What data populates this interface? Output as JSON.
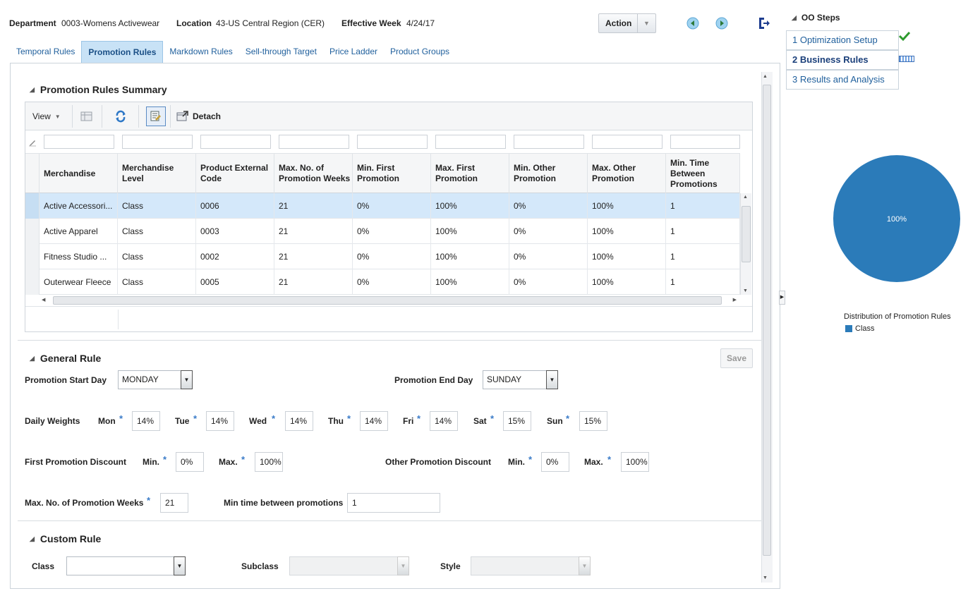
{
  "header": {
    "department_label": "Department",
    "department_value": "0003-Womens Activewear",
    "location_label": "Location",
    "location_value": "43-US Central Region (CER)",
    "effective_week_label": "Effective Week",
    "effective_week_value": "4/24/17",
    "action_label": "Action"
  },
  "tabs": [
    {
      "label": "Temporal Rules"
    },
    {
      "label": "Promotion Rules"
    },
    {
      "label": "Markdown Rules"
    },
    {
      "label": "Sell-through Target"
    },
    {
      "label": "Price Ladder"
    },
    {
      "label": "Product Groups"
    }
  ],
  "summary": {
    "title": "Promotion Rules Summary",
    "toolbar": {
      "view_label": "View",
      "detach_label": "Detach"
    },
    "columns": [
      "Merchandise",
      "Merchandise Level",
      "Product External Code",
      "Max. No. of Promotion Weeks",
      "Min. First Promotion",
      "Max. First Promotion",
      "Min. Other Promotion",
      "Max. Other Promotion",
      "Min. Time Between Promotions"
    ],
    "rows": [
      [
        "Active Accessori...",
        "Class",
        "0006",
        "21",
        "0%",
        "100%",
        "0%",
        "100%",
        "1"
      ],
      [
        "Active Apparel",
        "Class",
        "0003",
        "21",
        "0%",
        "100%",
        "0%",
        "100%",
        "1"
      ],
      [
        "Fitness Studio ...",
        "Class",
        "0002",
        "21",
        "0%",
        "100%",
        "0%",
        "100%",
        "1"
      ],
      [
        "Outerwear Fleece",
        "Class",
        "0005",
        "21",
        "0%",
        "100%",
        "0%",
        "100%",
        "1"
      ]
    ]
  },
  "general": {
    "title": "General Rule",
    "save_label": "Save",
    "start_day_label": "Promotion Start Day",
    "start_day_value": "MONDAY",
    "end_day_label": "Promotion End Day",
    "end_day_value": "SUNDAY",
    "daily_weights_label": "Daily Weights",
    "weights": [
      {
        "day": "Mon",
        "value": "14%"
      },
      {
        "day": "Tue",
        "value": "14%"
      },
      {
        "day": "Wed",
        "value": "14%"
      },
      {
        "day": "Thu",
        "value": "14%"
      },
      {
        "day": "Fri",
        "value": "14%"
      },
      {
        "day": "Sat",
        "value": "15%"
      },
      {
        "day": "Sun",
        "value": "15%"
      }
    ],
    "first_discount_label": "First Promotion Discount",
    "other_discount_label": "Other Promotion Discount",
    "min_label": "Min.",
    "max_label": "Max.",
    "first_min": "0%",
    "first_max": "100%",
    "other_min": "0%",
    "other_max": "100%",
    "max_weeks_label": "Max. No. of Promotion Weeks",
    "max_weeks_value": "21",
    "min_time_label": "Min time between promotions",
    "min_time_value": "1"
  },
  "custom": {
    "title": "Custom Rule",
    "class_label": "Class",
    "subclass_label": "Subclass",
    "style_label": "Style"
  },
  "steps": {
    "title": "OO Steps",
    "items": [
      {
        "label": "1 Optimization Setup"
      },
      {
        "label": "2 Business Rules"
      },
      {
        "label": "3 Results and Analysis"
      }
    ]
  },
  "chart_data": {
    "type": "pie",
    "title": "Distribution of Promotion Rules",
    "slices": [
      {
        "name": "Class",
        "value": 100,
        "label": "100%",
        "color": "#2b7bb9"
      }
    ]
  },
  "colors": {
    "accent": "#2b7bb9",
    "link": "#1f5f9c",
    "selected_row": "#d4e8fa"
  }
}
